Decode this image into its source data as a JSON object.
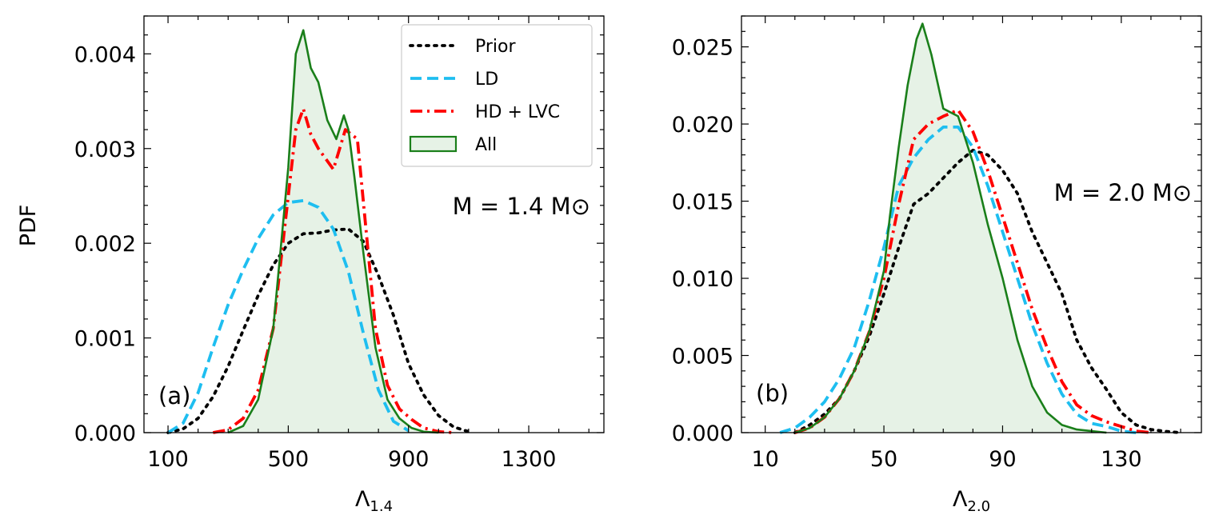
{
  "figure": {
    "ylabel_shared": "PDF"
  },
  "chart_data": [
    {
      "type": "line",
      "panel_label": "(a)",
      "annotation": "M = 1.4 M⊙",
      "xlabel_main": "Λ",
      "xlabel_sub": "1.4",
      "ylabel": "PDF",
      "xlim": [
        20,
        1550
      ],
      "ylim": [
        0,
        0.0044
      ],
      "xticks": [
        100,
        500,
        900,
        1300
      ],
      "xtick_labels": [
        "100",
        "500",
        "900",
        "1300"
      ],
      "xminor_step": 100,
      "yticks": [
        0,
        0.001,
        0.002,
        0.003,
        0.004
      ],
      "ytick_labels": [
        "0.000",
        "0.001",
        "0.002",
        "0.003",
        "0.004"
      ],
      "yminor_step": 0.0002,
      "legend": {
        "placement": "top-right",
        "entries": [
          {
            "label": "Prior",
            "style": "dotted",
            "color": "#000000"
          },
          {
            "label": "LD",
            "style": "dashed",
            "color": "#1ebef0"
          },
          {
            "label": "HD + LVC",
            "style": "dashdot",
            "color": "#ff0000"
          },
          {
            "label": "All",
            "style": "filled",
            "color": "#1a7f1a",
            "fill": "#e6f2e6"
          }
        ]
      },
      "series": [
        {
          "name": "Prior",
          "style": "dotted",
          "color": "#000000",
          "x": [
            100,
            150,
            200,
            250,
            300,
            350,
            400,
            450,
            500,
            550,
            600,
            650,
            700,
            750,
            800,
            850,
            900,
            950,
            1000,
            1050,
            1100
          ],
          "y": [
            0.0,
            4e-05,
            0.00015,
            0.00038,
            0.0007,
            0.00108,
            0.00145,
            0.00177,
            0.002,
            0.0021,
            0.00211,
            0.00214,
            0.00215,
            0.00202,
            0.00166,
            0.00124,
            0.00073,
            0.0004,
            0.00018,
            6e-05,
            1e-05
          ]
        },
        {
          "name": "LD",
          "style": "dashed",
          "color": "#1ebef0",
          "x": [
            100,
            150,
            200,
            250,
            300,
            350,
            400,
            450,
            500,
            550,
            600,
            650,
            700,
            750,
            800,
            850,
            900
          ],
          "y": [
            0.0,
            0.0001,
            0.00042,
            0.0009,
            0.00135,
            0.00172,
            0.00205,
            0.0023,
            0.00243,
            0.00245,
            0.00238,
            0.00215,
            0.0017,
            0.00105,
            0.00045,
            0.00012,
            2e-05
          ]
        },
        {
          "name": "HD + LVC",
          "style": "dashdot",
          "color": "#ff0000",
          "x": [
            250,
            300,
            350,
            400,
            450,
            500,
            525,
            550,
            575,
            600,
            650,
            690,
            730,
            760,
            790,
            830,
            870,
            910,
            950,
            1000,
            1050
          ],
          "y": [
            0.0,
            3e-05,
            0.00015,
            0.00045,
            0.0011,
            0.0025,
            0.0032,
            0.00342,
            0.00315,
            0.003,
            0.00278,
            0.0032,
            0.0031,
            0.0021,
            0.0011,
            0.0005,
            0.00025,
            0.00014,
            5e-05,
            1e-05,
            0.0
          ]
        },
        {
          "name": "All",
          "style": "filled",
          "color": "#1a7f1a",
          "fill": "#e6f2e6",
          "x": [
            300,
            350,
            400,
            450,
            500,
            525,
            550,
            575,
            600,
            630,
            660,
            685,
            700,
            720,
            750,
            790,
            830,
            870,
            910,
            950,
            1000
          ],
          "y": [
            0.0,
            7e-05,
            0.00035,
            0.0011,
            0.0028,
            0.004,
            0.00425,
            0.00385,
            0.0037,
            0.0033,
            0.0031,
            0.00335,
            0.0032,
            0.0027,
            0.0019,
            0.0009,
            0.00035,
            0.00015,
            5e-05,
            1e-05,
            0.0
          ]
        }
      ]
    },
    {
      "type": "line",
      "panel_label": "(b)",
      "annotation": "M = 2.0 M⊙",
      "xlabel_main": "Λ",
      "xlabel_sub": "2.0",
      "ylabel": "",
      "xlim": [
        2,
        157
      ],
      "ylim": [
        0,
        0.027
      ],
      "xticks": [
        10,
        50,
        90,
        130
      ],
      "xtick_labels": [
        "10",
        "50",
        "90",
        "130"
      ],
      "xminor_step": 10,
      "yticks": [
        0,
        0.005,
        0.01,
        0.015,
        0.02,
        0.025
      ],
      "ytick_labels": [
        "0.000",
        "0.005",
        "0.010",
        "0.015",
        "0.020",
        "0.025"
      ],
      "yminor_step": 0.001,
      "series": [
        {
          "name": "Prior",
          "style": "dotted",
          "color": "#000000",
          "x": [
            20,
            25,
            30,
            35,
            40,
            45,
            50,
            55,
            60,
            65,
            70,
            75,
            80,
            85,
            90,
            95,
            100,
            105,
            110,
            115,
            120,
            125,
            130,
            135,
            140,
            145,
            150
          ],
          "y": [
            0.0,
            0.0005,
            0.0012,
            0.0022,
            0.004,
            0.0062,
            0.009,
            0.012,
            0.0148,
            0.0155,
            0.0165,
            0.0175,
            0.0183,
            0.018,
            0.017,
            0.0155,
            0.013,
            0.011,
            0.009,
            0.006,
            0.0042,
            0.0028,
            0.0013,
            0.0005,
            0.0002,
            8e-05,
            0.0
          ]
        },
        {
          "name": "LD",
          "style": "dashed",
          "color": "#1ebef0",
          "x": [
            15,
            20,
            25,
            30,
            35,
            40,
            45,
            50,
            55,
            60,
            65,
            70,
            75,
            80,
            85,
            90,
            95,
            100,
            105,
            110,
            115,
            120,
            125,
            130,
            135
          ],
          "y": [
            0.0,
            0.0003,
            0.001,
            0.002,
            0.0035,
            0.0055,
            0.0085,
            0.012,
            0.016,
            0.0178,
            0.019,
            0.0198,
            0.0198,
            0.0185,
            0.016,
            0.013,
            0.01,
            0.007,
            0.0045,
            0.0025,
            0.0012,
            0.0006,
            0.0004,
            0.0001,
            0.0
          ]
        },
        {
          "name": "HD + LVC",
          "style": "dashdot",
          "color": "#ff0000",
          "x": [
            20,
            25,
            30,
            35,
            40,
            45,
            50,
            55,
            60,
            65,
            70,
            75,
            80,
            85,
            90,
            95,
            100,
            105,
            110,
            115,
            120,
            125,
            130,
            135,
            140
          ],
          "y": [
            0.0,
            0.0003,
            0.001,
            0.0022,
            0.004,
            0.0065,
            0.01,
            0.0148,
            0.019,
            0.02,
            0.0205,
            0.0209,
            0.0195,
            0.017,
            0.014,
            0.011,
            0.008,
            0.0055,
            0.0033,
            0.0018,
            0.0011,
            0.0007,
            0.0004,
            0.0001,
            0.0
          ]
        },
        {
          "name": "All",
          "style": "filled",
          "color": "#1a7f1a",
          "fill": "#e6f2e6",
          "x": [
            20,
            25,
            30,
            35,
            40,
            45,
            50,
            52,
            55,
            58,
            61,
            63,
            66,
            70,
            75,
            80,
            85,
            90,
            95,
            100,
            105,
            110,
            115,
            120,
            125
          ],
          "y": [
            0.0,
            0.0003,
            0.001,
            0.0022,
            0.004,
            0.0065,
            0.0105,
            0.014,
            0.0185,
            0.0225,
            0.0255,
            0.0265,
            0.0245,
            0.021,
            0.0205,
            0.0175,
            0.0135,
            0.01,
            0.006,
            0.003,
            0.0013,
            0.0005,
            0.0002,
            0.0001,
            0.0
          ]
        }
      ]
    }
  ]
}
